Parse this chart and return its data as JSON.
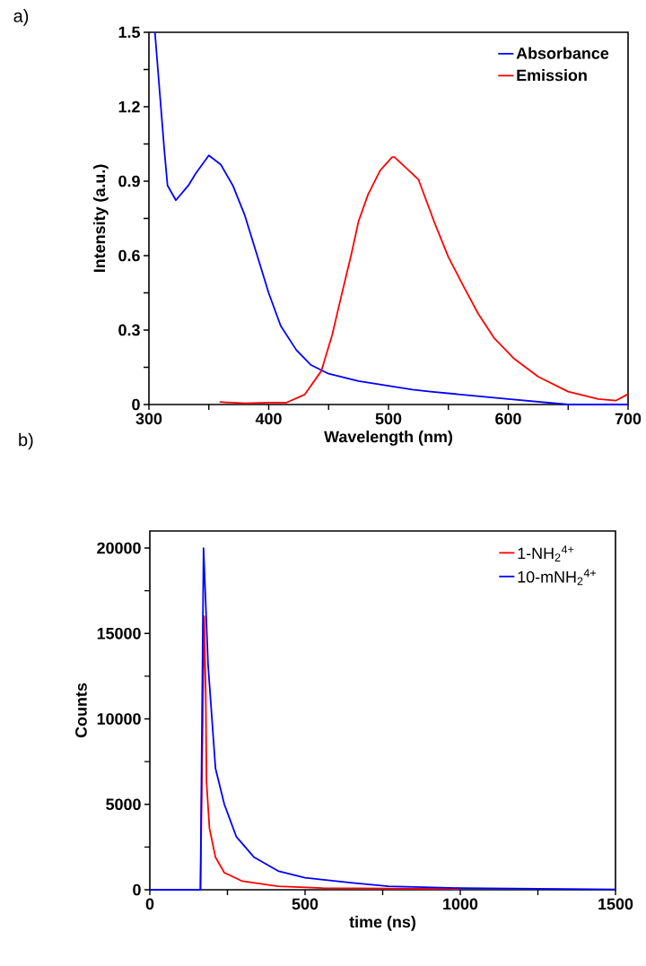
{
  "chart_data": [
    {
      "type": "line",
      "xlabel": "Wavelength (nm)",
      "ylabel": "Intensity (a.u.)",
      "annotations": [
        "a)"
      ],
      "xlim": [
        300,
        700
      ],
      "ylim": [
        0,
        1.5
      ],
      "xticks": [
        300,
        {
          "value": 350,
          "label": null
        },
        400,
        {
          "value": 450,
          "label": null
        },
        500,
        {
          "value": 550,
          "label": null
        },
        600,
        {
          "value": 650,
          "label": null
        },
        700
      ],
      "yticks": [
        0,
        {
          "value": 0.15,
          "label": null
        },
        0.3,
        {
          "value": 0.45,
          "label": null
        },
        0.6,
        {
          "value": 0.75,
          "label": null
        },
        0.9,
        {
          "value": 1.05,
          "label": null
        },
        1.2,
        {
          "value": 1.35,
          "label": null
        },
        1.5
      ],
      "legend": "top right",
      "series": [
        {
          "name": "Absorbance",
          "color": "#0000ff",
          "x": [
            305,
            313,
            315.5,
            322.5,
            333,
            339,
            350,
            360,
            370,
            380,
            390,
            400,
            410,
            423,
            435,
            450,
            475,
            520,
            535,
            600,
            650,
            700
          ],
          "values": [
            1.5,
            1.016,
            0.883,
            0.823,
            0.883,
            0.931,
            1.004,
            0.967,
            0.883,
            0.763,
            0.606,
            0.449,
            0.317,
            0.22,
            0.16,
            0.124,
            0.094,
            0.06,
            0.052,
            0.022,
            0.0,
            0.0
          ]
        },
        {
          "name": "Emission",
          "color": "#ff0000",
          "x": [
            359,
            380,
            400,
            415,
            430,
            444,
            453,
            460,
            469,
            475,
            483,
            493,
            503,
            505,
            525,
            538,
            550,
            563,
            575,
            588,
            605,
            625,
            650,
            675,
            690,
            700
          ],
          "values": [
            0.01,
            0.005,
            0.008,
            0.008,
            0.04,
            0.136,
            0.281,
            0.425,
            0.606,
            0.738,
            0.847,
            0.943,
            0.997,
            0.997,
            0.907,
            0.738,
            0.594,
            0.473,
            0.365,
            0.269,
            0.184,
            0.112,
            0.052,
            0.022,
            0.016,
            0.042
          ]
        }
      ]
    },
    {
      "type": "line",
      "xlabel": "time (ns)",
      "ylabel": "Counts",
      "annotations": [
        "b)"
      ],
      "xlim": [
        0,
        1500
      ],
      "ylim": [
        0,
        21000
      ],
      "xticks": [
        0,
        {
          "value": 250,
          "label": null
        },
        500,
        {
          "value": 750,
          "label": null
        },
        1000,
        {
          "value": 1250,
          "label": null
        },
        1500
      ],
      "yticks": [
        0,
        {
          "value": 2500,
          "label": null
        },
        5000,
        {
          "value": 7500,
          "label": null
        },
        10000,
        {
          "value": 12500,
          "label": null
        },
        15000,
        {
          "value": 17500,
          "label": null
        },
        20000
      ],
      "legend": "top right",
      "series": [
        {
          "name": "1-NH$_{2}$$^{4+}$",
          "color": "#ff0000",
          "x": [
            0,
            163,
            175,
            180,
            182.6,
            192,
            211.5,
            240,
            298,
            413,
            557,
            1000
          ],
          "values": [
            0,
            0,
            16000,
            11500,
            6300,
            3600,
            1900,
            1000,
            500,
            200,
            100,
            50
          ]
        },
        {
          "name": "10-mNH$_{2}$$^{4+}$",
          "color": "#0000ff",
          "x": [
            0,
            163,
            173,
            187.5,
            211.5,
            240,
            278.7,
            336,
            413,
            500,
            654,
            769,
            1000,
            1500
          ],
          "values": [
            0,
            0,
            20000,
            13200,
            7100,
            5000,
            3100,
            1900,
            1100,
            700,
            400,
            200,
            100,
            20
          ]
        }
      ]
    }
  ]
}
